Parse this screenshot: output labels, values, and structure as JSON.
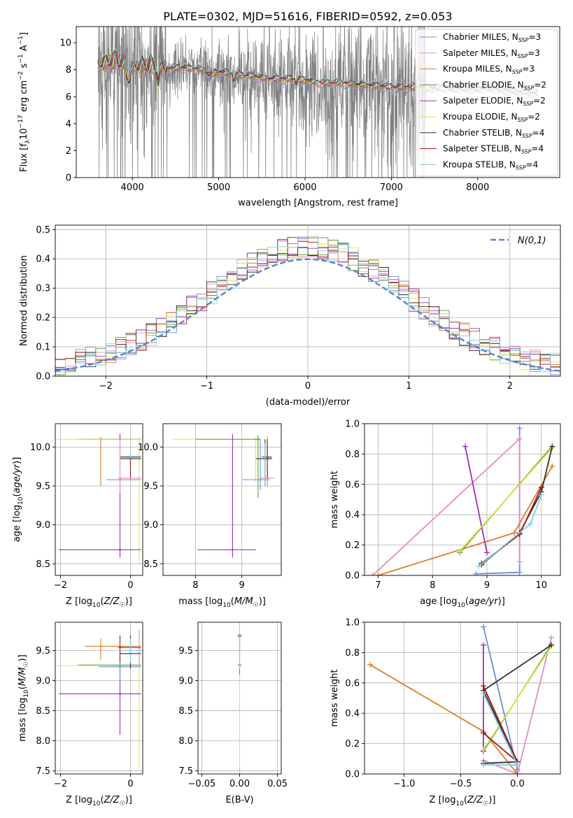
{
  "figure_title": "PLATE=0302, MJD=51616, FIBERID=0592, z=0.053",
  "colors": {
    "Chabrier MILES": "#6a8fd8",
    "Salpeter MILES": "#e68ac0",
    "Kroupa MILES": "#e07e24",
    "Chabrier ELODIE": "#5a9e3a",
    "Salpeter ELODIE": "#9b30b8",
    "Kroupa ELODIE": "#d8e84a",
    "Chabrier STELIB": "#333333",
    "Salpeter STELIB": "#a31a1a",
    "Kroupa STELIB": "#7fcfe0",
    "data": "#808080",
    "gaussian": "#5b84d6"
  },
  "chart_data": [
    {
      "type": "line",
      "panel": "spectrum",
      "title": "PLATE=0302, MJD=51616, FIBERID=0592, z=0.053",
      "xlabel": "wavelength [Angstrom, rest frame]",
      "ylabel": "Flux [fλ10⁻¹⁷ erg cm⁻² s⁻¹ A⁻¹]",
      "xlim": [
        3350,
        8950
      ],
      "ylim": [
        0,
        11.2
      ],
      "xticks": [
        4000,
        5000,
        6000,
        7000,
        8000
      ],
      "yticks": [
        0,
        2,
        4,
        6,
        8,
        10
      ],
      "legend_position": "top-right",
      "legend": [
        {
          "label": "Chabrier MILES, N",
          "sub": "SSP",
          "value": "=3"
        },
        {
          "label": "Salpeter MILES, N",
          "sub": "SSP",
          "value": "=3"
        },
        {
          "label": "Kroupa MILES, N",
          "sub": "SSP",
          "value": "=3"
        },
        {
          "label": "Chabrier ELODIE, N",
          "sub": "SSP",
          "value": "=2"
        },
        {
          "label": "Salpeter ELODIE, N",
          "sub": "SSP",
          "value": "=2"
        },
        {
          "label": "Kroupa ELODIE, N",
          "sub": "SSP",
          "value": "=2"
        },
        {
          "label": "Chabrier STELIB, N",
          "sub": "SSP",
          "value": "=4"
        },
        {
          "label": "Salpeter STELIB, N",
          "sub": "SSP",
          "value": "=4"
        },
        {
          "label": "Kroupa STELIB, N",
          "sub": "SSP",
          "value": "=4"
        }
      ],
      "data_range": [
        3600,
        7400
      ],
      "model_range": [
        3600,
        8700
      ],
      "continuum": [
        [
          3600,
          8.3
        ],
        [
          3700,
          8.6
        ],
        [
          3800,
          8.7
        ],
        [
          3900,
          8.5
        ],
        [
          4000,
          8.1
        ],
        [
          4100,
          8.3
        ],
        [
          4200,
          8.4
        ],
        [
          4300,
          8.0
        ],
        [
          4400,
          8.1
        ],
        [
          4600,
          8.1
        ],
        [
          4800,
          8.0
        ],
        [
          4900,
          7.6
        ],
        [
          5000,
          7.8
        ],
        [
          5200,
          7.6
        ],
        [
          5400,
          7.5
        ],
        [
          5600,
          7.3
        ],
        [
          5800,
          7.3
        ],
        [
          6000,
          7.2
        ],
        [
          6200,
          7.0
        ],
        [
          6400,
          7.0
        ],
        [
          6600,
          6.9
        ],
        [
          6800,
          6.8
        ],
        [
          7000,
          6.7
        ],
        [
          7200,
          6.7
        ],
        [
          7400,
          6.6
        ],
        [
          7600,
          6.7
        ],
        [
          7800,
          6.6
        ],
        [
          8000,
          6.6
        ],
        [
          8200,
          6.6
        ],
        [
          8400,
          6.4
        ],
        [
          8600,
          6.3
        ],
        [
          8700,
          6.2
        ]
      ]
    },
    {
      "type": "line",
      "panel": "residual-histogram",
      "xlabel": "(data-model)/error",
      "ylabel": "Normed distribution",
      "xlim": [
        -2.5,
        2.5
      ],
      "ylim": [
        0,
        0.515
      ],
      "xticks": [
        -2,
        -1,
        0,
        1,
        2
      ],
      "yticks": [
        0.0,
        0.1,
        0.2,
        0.3,
        0.4,
        0.5
      ],
      "gaussian_label": "N(0,1)",
      "legend_position": "top-right",
      "bin_width": 0.1
    },
    {
      "type": "scatter",
      "panel": "age-vs-metallicity",
      "xlabel": "Z [log10(Z/Z☉)]",
      "ylabel": "age [log10(age/yr)]",
      "xlim": [
        -2.15,
        0.35
      ],
      "ylim": [
        8.35,
        10.3
      ],
      "xticks": [
        -2,
        0
      ],
      "yticks": [
        8.5,
        9.0,
        9.5,
        10.0
      ]
    },
    {
      "type": "scatter",
      "panel": "age-vs-mass",
      "xlabel": "mass [log10(M/M☉)]",
      "xlim": [
        7.3,
        9.85
      ],
      "ylim": [
        8.35,
        10.3
      ],
      "xticks": [
        8,
        9
      ],
      "yticks": [
        8.5,
        9.0,
        9.5,
        10.0
      ]
    },
    {
      "type": "line",
      "panel": "weight-vs-age",
      "xlabel": "age [log10(age/yr)]",
      "ylabel": "mass weight",
      "xlim": [
        6.75,
        10.35
      ],
      "ylim": [
        0,
        1.0
      ],
      "xticks": [
        7,
        8,
        9,
        10
      ],
      "yticks": [
        0.0,
        0.2,
        0.4,
        0.6,
        0.8,
        1.0
      ],
      "series": [
        {
          "key": "Chabrier MILES",
          "x": [
            8.8,
            9.6,
            9.6
          ],
          "y": [
            0.01,
            0.02,
            0.97
          ]
        },
        {
          "key": "Salpeter MILES",
          "x": [
            6.9,
            9.6,
            9.6
          ],
          "y": [
            0.0,
            0.9,
            0.09
          ]
        },
        {
          "key": "Kroupa MILES",
          "x": [
            7.0,
            9.5,
            10.2
          ],
          "y": [
            0.0,
            0.28,
            0.72
          ]
        },
        {
          "key": "Chabrier ELODIE",
          "x": [
            8.5,
            10.2
          ],
          "y": [
            0.15,
            0.85
          ]
        },
        {
          "key": "Salpeter ELODIE",
          "x": [
            8.6,
            9.0
          ],
          "y": [
            0.85,
            0.15
          ]
        },
        {
          "key": "Kroupa ELODIE",
          "x": [
            8.5,
            10.2
          ],
          "y": [
            0.16,
            0.84
          ]
        },
        {
          "key": "Chabrier STELIB",
          "x": [
            8.9,
            9.6,
            10.0,
            10.2
          ],
          "y": [
            0.07,
            0.28,
            0.55,
            0.85
          ]
        },
        {
          "key": "Salpeter STELIB",
          "x": [
            8.9,
            9.6,
            10.0
          ],
          "y": [
            0.08,
            0.27,
            0.58
          ]
        },
        {
          "key": "Kroupa STELIB",
          "x": [
            8.85,
            9.8,
            10.0
          ],
          "y": [
            0.06,
            0.34,
            0.53
          ]
        }
      ]
    },
    {
      "type": "scatter",
      "panel": "mass-vs-metallicity",
      "xlabel": "Z [log10(Z/Z☉)]",
      "ylabel": "mass [log10(M/M☉)]",
      "xlim": [
        -2.15,
        0.35
      ],
      "ylim": [
        7.45,
        9.97
      ],
      "xticks": [
        -2,
        0
      ],
      "yticks": [
        7.5,
        8.0,
        8.5,
        9.0,
        9.5
      ]
    },
    {
      "type": "scatter",
      "panel": "mass-vs-extinction",
      "xlabel": "E(B-V)",
      "xlim": [
        -0.055,
        0.055
      ],
      "ylim": [
        7.45,
        9.97
      ],
      "xticks": [
        -0.05,
        0.0,
        0.05
      ],
      "xtick_labels": [
        "−0.05",
        "0.00",
        "0.05"
      ],
      "yticks": [
        7.5,
        8.0,
        8.5,
        9.0,
        9.5
      ]
    },
    {
      "type": "line",
      "panel": "weight-vs-metallicity",
      "xlabel": "Z [log10(Z/Z☉)]",
      "ylabel": "mass weight",
      "xlim": [
        -1.35,
        0.38
      ],
      "ylim": [
        0,
        1.0
      ],
      "xticks": [
        -1.0,
        -0.5,
        0.0
      ],
      "yticks": [
        0.0,
        0.2,
        0.4,
        0.6,
        0.8,
        1.0
      ],
      "series": [
        {
          "key": "Chabrier MILES",
          "x": [
            -0.3,
            0.0,
            0.0
          ],
          "y": [
            0.97,
            0.03,
            0.02
          ]
        },
        {
          "key": "Salpeter MILES",
          "x": [
            -0.3,
            0.0,
            0.3
          ],
          "y": [
            0.09,
            0.0,
            0.9
          ]
        },
        {
          "key": "Kroupa MILES",
          "x": [
            -1.3,
            -0.3,
            0.0
          ],
          "y": [
            0.72,
            0.28,
            0.0
          ]
        },
        {
          "key": "Chabrier ELODIE",
          "x": [
            -0.3,
            0.3
          ],
          "y": [
            0.15,
            0.85
          ]
        },
        {
          "key": "Salpeter ELODIE",
          "x": [
            -0.3,
            -0.3
          ],
          "y": [
            0.85,
            0.15
          ]
        },
        {
          "key": "Kroupa ELODIE",
          "x": [
            -0.3,
            0.3
          ],
          "y": [
            0.16,
            0.84
          ]
        },
        {
          "key": "Chabrier STELIB",
          "x": [
            -0.3,
            0.0,
            -0.3,
            0.3
          ],
          "y": [
            0.07,
            0.08,
            0.55,
            0.85
          ]
        },
        {
          "key": "Salpeter STELIB",
          "x": [
            -0.3,
            0.0,
            -0.3
          ],
          "y": [
            0.58,
            0.08,
            0.27
          ]
        },
        {
          "key": "Kroupa STELIB",
          "x": [
            -0.3,
            0.0,
            -0.3
          ],
          "y": [
            0.06,
            0.06,
            0.53
          ]
        }
      ]
    }
  ],
  "error_bars": {
    "age_vs_Z": [
      {
        "key": "Chabrier MILES",
        "cx": -0.3,
        "cy": 9.58,
        "x0": -0.7,
        "x1": 0.3,
        "y0": 9.58,
        "y1": 9.58
      },
      {
        "key": "Kroupa MILES",
        "cx": -0.85,
        "cy": 10.1,
        "x0": -1.3,
        "x1": 0.3,
        "y0": 9.5,
        "y1": 10.13
      },
      {
        "key": "Chabrier ELODIE",
        "cx": -0.3,
        "cy": 10.1,
        "x0": -1.5,
        "x1": 0.3,
        "y0": 10.1,
        "y1": 10.1
      },
      {
        "key": "Kroupa ELODIE",
        "cx": 0.25,
        "cy": 10.1,
        "x0": -2.1,
        "x1": 0.3,
        "y0": 8.5,
        "y1": 10.1
      },
      {
        "key": "Salpeter ELODIE",
        "cx": -0.3,
        "cy": 8.68,
        "x0": -2.05,
        "x1": 0.3,
        "y0": 8.58,
        "y1": 10.17
      },
      {
        "key": "Chabrier STELIB",
        "cx": 0.0,
        "cy": 9.85,
        "x0": -0.3,
        "x1": 0.3,
        "y0": 9.85,
        "y1": 9.85
      },
      {
        "key": "Salpeter STELIB",
        "cx": 0.0,
        "cy": 9.87,
        "x0": -0.3,
        "x1": 0.3,
        "y0": 9.6,
        "y1": 9.87
      },
      {
        "key": "Kroupa STELIB",
        "cx": 0.0,
        "cy": 9.88,
        "x0": -0.3,
        "x1": 0.3,
        "y0": 9.88,
        "y1": 9.88
      },
      {
        "key": "Salpeter MILES",
        "cx": -0.3,
        "cy": 9.6,
        "x0": -0.3,
        "x1": 0.3,
        "y0": 9.4,
        "y1": 10.1
      }
    ],
    "age_vs_mass": [
      {
        "key": "Kroupa ELODIE",
        "cx": 9.3,
        "cy": 10.1,
        "x0": 7.5,
        "x1": 9.3,
        "y0": 9.55,
        "y1": 10.1
      },
      {
        "key": "Chabrier ELODIE",
        "cx": 9.35,
        "cy": 10.1,
        "x0": 8.0,
        "x1": 9.4,
        "y0": 9.35,
        "y1": 10.15
      },
      {
        "key": "Salpeter ELODIE",
        "cx": 8.8,
        "cy": 8.68,
        "x0": 8.05,
        "x1": 9.3,
        "y0": 8.58,
        "y1": 10.17
      },
      {
        "key": "Chabrier MILES",
        "cx": 9.4,
        "cy": 9.58,
        "x0": 9.0,
        "x1": 9.6,
        "y0": 9.45,
        "y1": 10.1
      },
      {
        "key": "Kroupa MILES",
        "cx": 9.55,
        "cy": 9.85,
        "x0": 9.45,
        "x1": 9.65,
        "y0": 9.5,
        "y1": 10.13
      },
      {
        "key": "Salpeter MILES",
        "cx": 9.55,
        "cy": 9.6,
        "x0": 9.4,
        "x1": 9.7,
        "y0": 9.5,
        "y1": 10.1
      },
      {
        "key": "Chabrier STELIB",
        "cx": 9.5,
        "cy": 9.85,
        "x0": 9.3,
        "x1": 9.65,
        "y0": 9.5,
        "y1": 10.1
      },
      {
        "key": "Salpeter STELIB",
        "cx": 9.55,
        "cy": 9.87,
        "x0": 9.45,
        "x1": 9.65,
        "y0": 9.6,
        "y1": 10.1
      },
      {
        "key": "Kroupa STELIB",
        "cx": 9.5,
        "cy": 9.88,
        "x0": 9.4,
        "x1": 9.6,
        "y0": 9.5,
        "y1": 10.05
      }
    ],
    "mass_vs_Z": [
      {
        "key": "Kroupa MILES",
        "cx": -0.85,
        "cy": 9.57,
        "x0": -1.3,
        "x1": 0.3,
        "y0": 9.35,
        "y1": 9.7
      },
      {
        "key": "Chabrier ELODIE",
        "cx": -0.3,
        "cy": 9.26,
        "x0": -1.5,
        "x1": 0.3,
        "y0": 9.26,
        "y1": 9.26
      },
      {
        "key": "Kroupa ELODIE",
        "cx": 0.25,
        "cy": 9.25,
        "x0": -2.1,
        "x1": 0.3,
        "y0": 7.55,
        "y1": 9.5
      },
      {
        "key": "Salpeter ELODIE",
        "cx": -0.3,
        "cy": 8.78,
        "x0": -2.05,
        "x1": 0.3,
        "y0": 8.1,
        "y1": 9.6
      },
      {
        "key": "Chabrier MILES",
        "cx": -0.3,
        "cy": 9.23,
        "x0": -0.9,
        "x1": 0.3,
        "y0": 9.0,
        "y1": 9.5
      },
      {
        "key": "Salpeter MILES",
        "cx": 0.25,
        "cy": 9.5,
        "x0": -0.3,
        "x1": 0.3,
        "y0": 9.25,
        "y1": 9.85
      },
      {
        "key": "Chabrier STELIB",
        "cx": 0.0,
        "cy": 9.45,
        "x0": -0.3,
        "x1": 0.3,
        "y0": 9.2,
        "y1": 9.75
      },
      {
        "key": "Salpeter STELIB",
        "cx": -0.3,
        "cy": 9.55,
        "x0": -0.3,
        "x1": 0.3,
        "y0": 9.3,
        "y1": 9.75
      },
      {
        "key": "Kroupa STELIB",
        "cx": 0.0,
        "cy": 9.5,
        "x0": -0.3,
        "x1": 0.3,
        "y0": 9.3,
        "y1": 9.7
      }
    ],
    "mass_vs_ebv": [
      {
        "key": "Kroupa ELODIE",
        "cx": 0.0,
        "cy": 9.25,
        "x0": 0.0,
        "x1": 0.0,
        "y0": 7.55,
        "y1": 9.5
      },
      {
        "key": "Chabrier ELODIE",
        "cx": 0.0,
        "cy": 9.26,
        "x0": 0.0,
        "x1": 0.0,
        "y0": 9.1,
        "y1": 9.6
      },
      {
        "key": "Salpeter STELIB",
        "cx": 0.0,
        "cy": 9.75,
        "x0": 0.0,
        "x1": 0.0,
        "y0": 9.5,
        "y1": 9.78
      },
      {
        "key": "Salpeter MILES",
        "cx": 0.0,
        "cy": 9.73,
        "x0": 0.0,
        "x1": 0.0,
        "y0": 9.5,
        "y1": 9.78
      },
      {
        "key": "Kroupa STELIB",
        "cx": 0.0,
        "cy": 9.5,
        "x0": 0.0,
        "x1": 0.0,
        "y0": 9.2,
        "y1": 9.7
      }
    ]
  }
}
